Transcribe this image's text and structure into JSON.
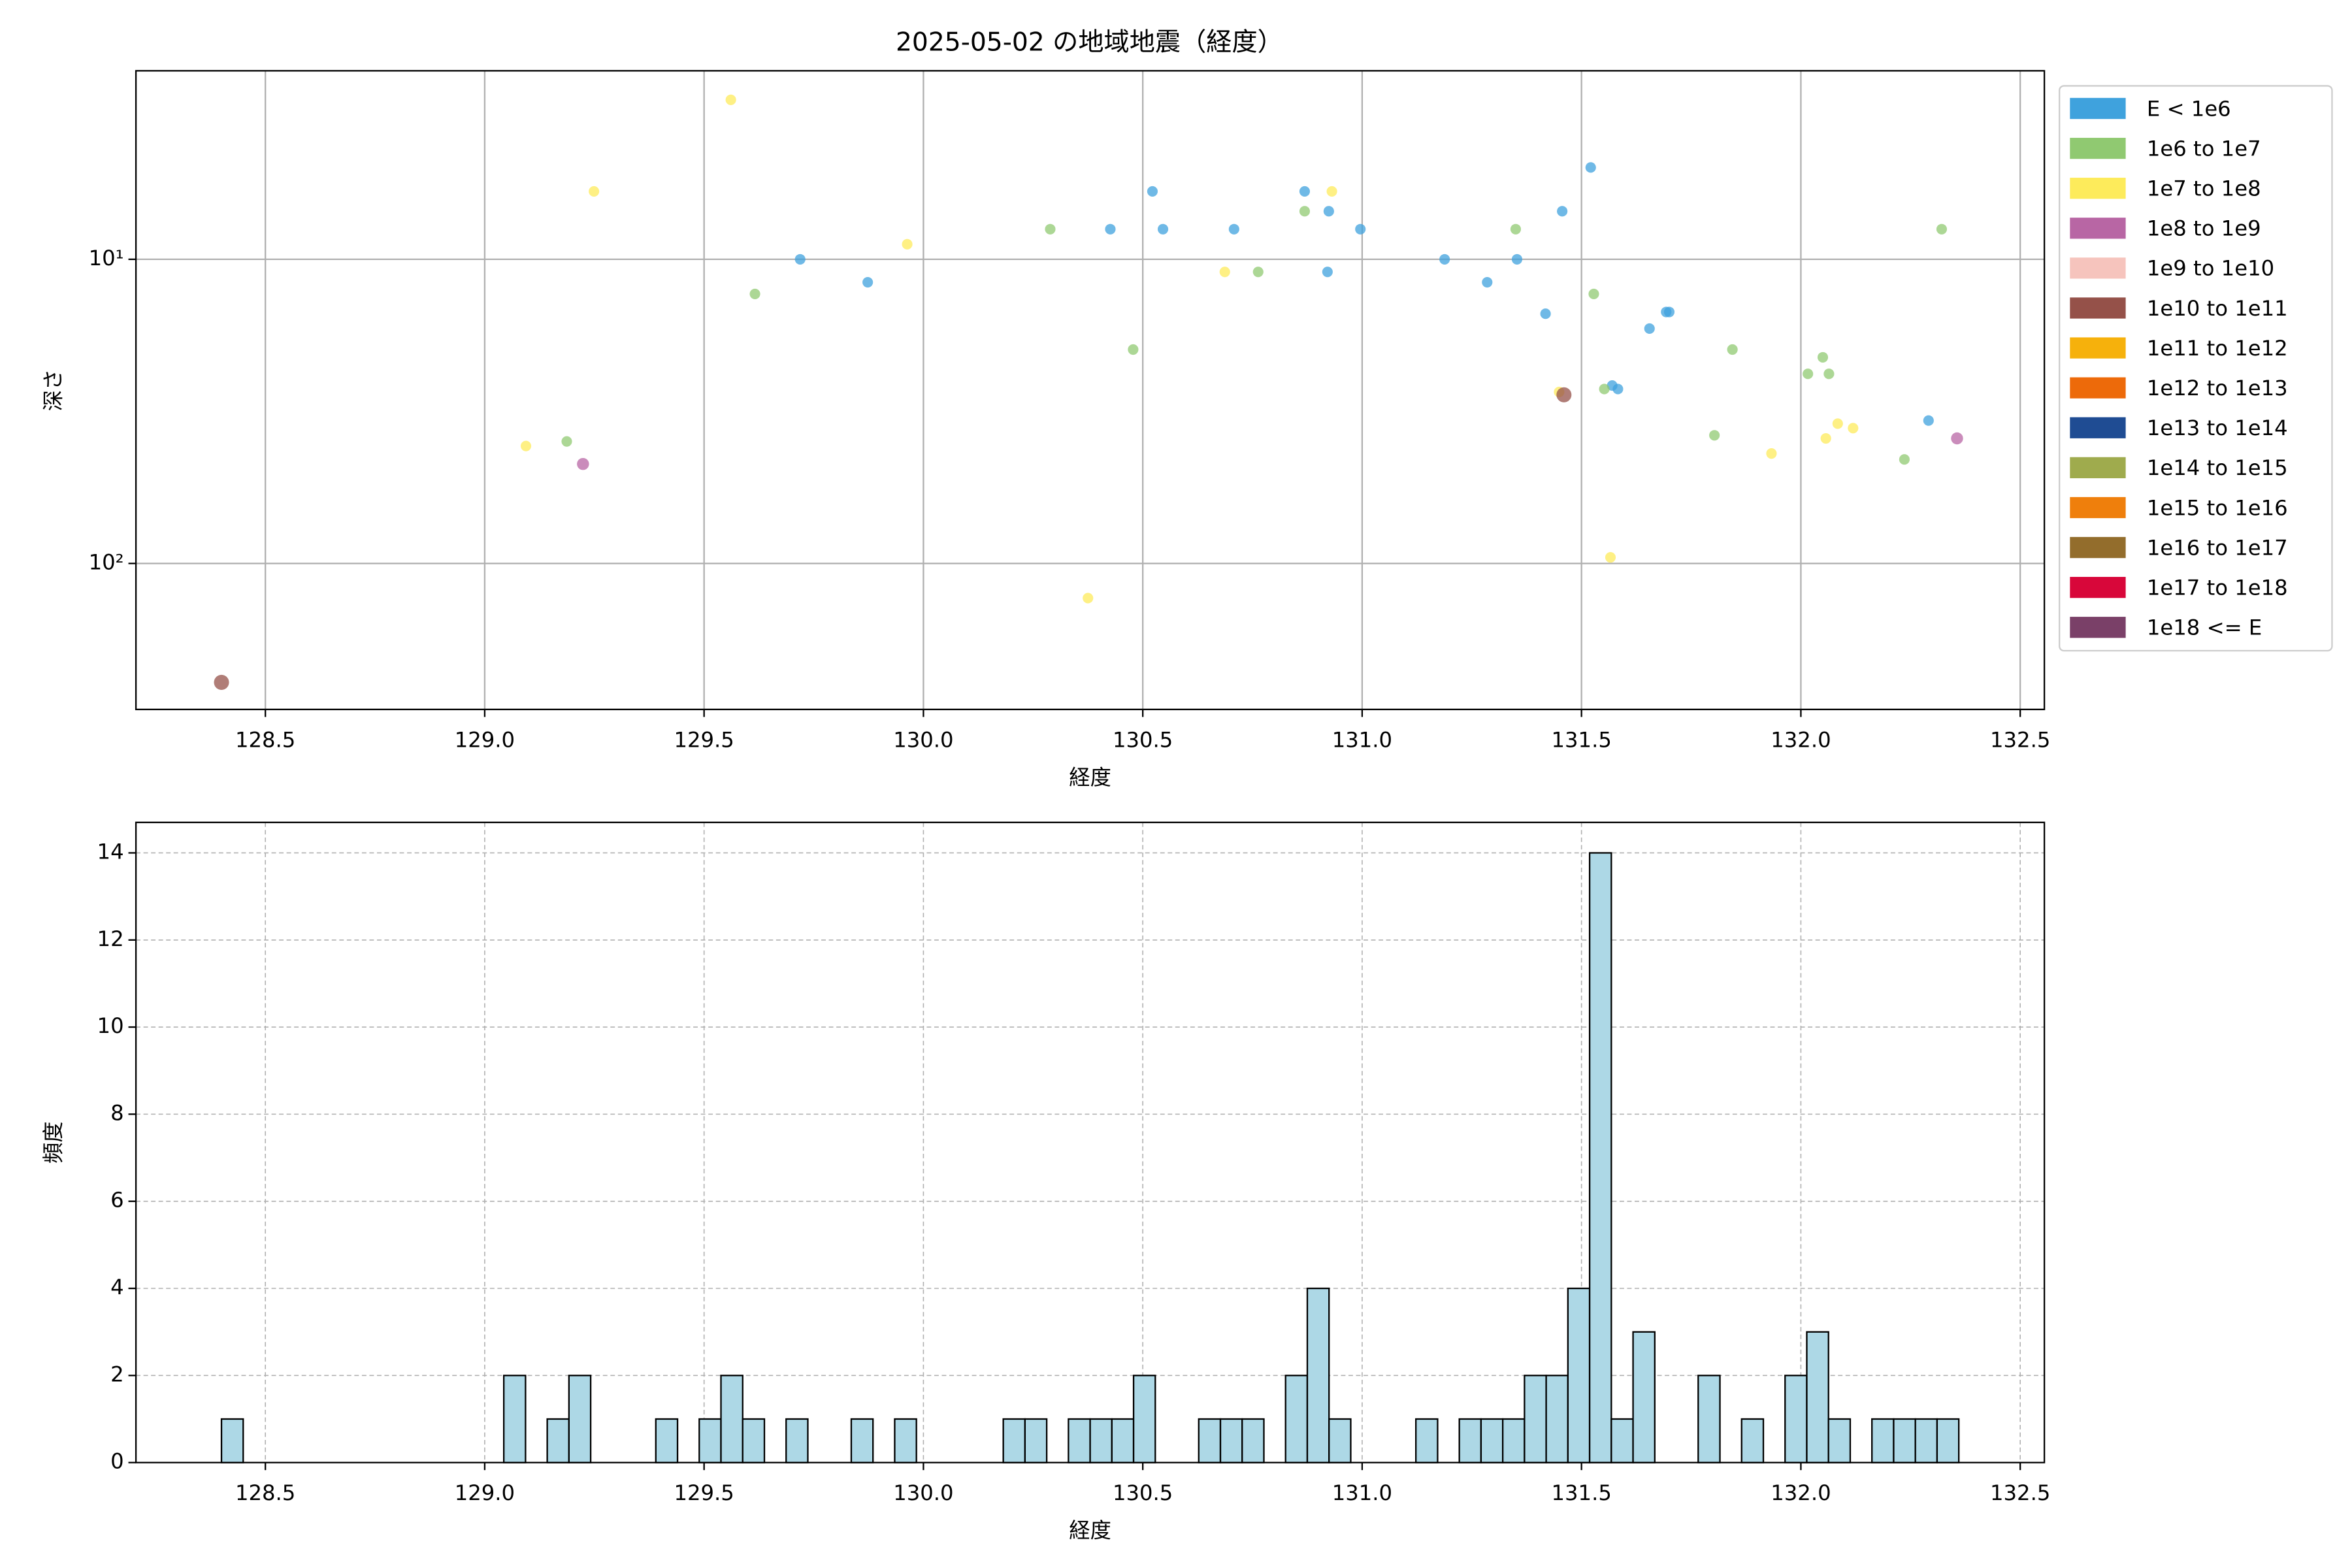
{
  "chart_data": [
    {
      "type": "scatter",
      "title": "2025-05-02 の地域地震（経度）",
      "x_label": "経度",
      "y_label": "深さ",
      "xlim": [
        128.205,
        132.555
      ],
      "ylim": [
        2.4,
        302
      ],
      "y_log": true,
      "y_inverted": true,
      "grid": true,
      "legend": "outside-right",
      "xticks": [
        128.5,
        129,
        129.5,
        130,
        130.5,
        131,
        131.5,
        132,
        132.5
      ],
      "xtick_labels": [
        "128.5",
        "129.0",
        "129.5",
        "130.0",
        "130.5",
        "131.0",
        "131.5",
        "132.0",
        "132.5"
      ],
      "yticks": [
        {
          "value": 10,
          "label": "10¹"
        },
        {
          "value": 100,
          "label": "10²"
        }
      ],
      "series": [
        {
          "name": "E < 1e6",
          "color": "#3fa2dd",
          "size": 3.5,
          "x": [
            129.719,
            129.873,
            130.426,
            130.522,
            130.546,
            130.708,
            130.869,
            130.921,
            130.924,
            130.996,
            131.188,
            131.285,
            131.353,
            131.418,
            131.456,
            131.521,
            131.57,
            131.583,
            131.655,
            131.693,
            131.7,
            132.291
          ],
          "values": [
            10,
            11.9,
            7.96,
            5.98,
            7.96,
            7.96,
            5.98,
            11,
            6.95,
            7.96,
            10,
            11.9,
            10,
            15.1,
            6.95,
            4.99,
            26,
            26.7,
            16.9,
            14.9,
            14.9,
            33.9
          ]
        },
        {
          "name": "1e6 to 1e7",
          "color": "#90c971",
          "size": 3.5,
          "x": [
            129.187,
            129.616,
            130.289,
            130.478,
            130.763,
            130.869,
            131.35,
            131.528,
            131.552,
            131.844,
            131.803,
            132.016,
            132.05,
            132.064,
            132.236,
            132.321
          ],
          "values": [
            39.7,
            13,
            7.96,
            19.8,
            11,
            6.95,
            7.96,
            13,
            26.7,
            19.8,
            37.9,
            23.8,
            21,
            23.8,
            45.5,
            7.96
          ]
        },
        {
          "name": "1e7 to 1e8",
          "color": "#fdeb5b",
          "size": 3.5,
          "x": [
            129.094,
            129.249,
            129.561,
            129.963,
            130.375,
            130.687,
            130.931,
            131.449,
            131.566,
            131.933,
            132.057,
            132.084,
            132.119
          ],
          "values": [
            41.1,
            5.98,
            2.99,
            8.92,
            130,
            11,
            5.98,
            27.3,
            95.5,
            43.5,
            38.8,
            34.7,
            35.9
          ]
        },
        {
          "name": "1e8 to 1e9",
          "color": "#b866a4",
          "size": 4,
          "x": [
            129.224,
            132.356
          ],
          "values": [
            47.1,
            38.8
          ]
        },
        {
          "name": "1e9 to 1e10",
          "color": "#f6c4bd",
          "size": 4.5,
          "x": [],
          "values": []
        },
        {
          "name": "1e10 to 1e11",
          "color": "#955149",
          "size": 5,
          "x": [
            128.4,
            131.46
          ],
          "values": [
            246,
            27.9
          ]
        },
        {
          "name": "1e11 to 1e12",
          "color": "#f6b10c",
          "size": 5.5,
          "x": [],
          "values": []
        },
        {
          "name": "1e12 to 1e13",
          "color": "#ed6a0a",
          "size": 6,
          "x": [],
          "values": []
        },
        {
          "name": "1e13 to 1e14",
          "color": "#1f4c93",
          "size": 6.5,
          "x": [],
          "values": []
        },
        {
          "name": "1e14 to 1e15",
          "color": "#9fab4d",
          "size": 7,
          "x": [],
          "values": []
        },
        {
          "name": "1e15 to 1e16",
          "color": "#ef7f0c",
          "size": 7.5,
          "x": [],
          "values": []
        },
        {
          "name": "1e16 to 1e17",
          "color": "#936d2c",
          "size": 8,
          "x": [],
          "values": []
        },
        {
          "name": "1e17 to 1e18",
          "color": "#d8073a",
          "size": 8.5,
          "x": [],
          "values": []
        },
        {
          "name": "1e18 <= E",
          "color": "#7a4068",
          "size": 9,
          "x": [],
          "values": []
        }
      ]
    },
    {
      "type": "histogram",
      "x_label": "経度",
      "y_label": "頻度",
      "color": "#add8e6",
      "edge_color": "#000000",
      "xlim": [
        128.205,
        132.555
      ],
      "ylim": [
        0,
        14.7
      ],
      "grid": true,
      "grid_style": "dashed",
      "xticks": [
        128.5,
        129,
        129.5,
        130,
        130.5,
        131,
        131.5,
        132,
        132.5
      ],
      "xtick_labels": [
        "128.5",
        "129.0",
        "129.5",
        "130.0",
        "130.5",
        "131.0",
        "131.5",
        "132.0",
        "132.5"
      ],
      "yticks": [
        0,
        2,
        4,
        6,
        8,
        10,
        12,
        14
      ],
      "bins": [
        128.4,
        128.4495,
        128.499,
        128.5485,
        128.598,
        128.6475,
        128.697,
        128.7465,
        128.796,
        128.8455,
        128.895,
        128.9445,
        128.994,
        129.0435,
        129.093,
        129.1425,
        129.192,
        129.2415,
        129.291,
        129.3405,
        129.39,
        129.4395,
        129.489,
        129.5385,
        129.588,
        129.6375,
        129.687,
        129.7365,
        129.786,
        129.8355,
        129.885,
        129.9345,
        129.984,
        130.0335,
        130.083,
        130.1325,
        130.182,
        130.2315,
        130.281,
        130.3305,
        130.38,
        130.4295,
        130.479,
        130.5285,
        130.578,
        130.6275,
        130.677,
        130.7265,
        130.776,
        130.8255,
        130.875,
        130.9245,
        130.974,
        131.0235,
        131.073,
        131.1225,
        131.172,
        131.2215,
        131.271,
        131.3205,
        131.37,
        131.4195,
        131.469,
        131.5185,
        131.568,
        131.6175,
        131.667,
        131.7165,
        131.766,
        131.8155,
        131.865,
        131.9145,
        131.964,
        132.0135,
        132.063,
        132.1125,
        132.162,
        132.2115,
        132.261,
        132.3105,
        132.36
      ],
      "values": [
        1,
        0,
        0,
        0,
        0,
        0,
        0,
        0,
        0,
        0,
        0,
        0,
        0,
        2,
        0,
        1,
        2,
        0,
        0,
        0,
        1,
        0,
        1,
        2,
        1,
        0,
        1,
        0,
        0,
        1,
        0,
        1,
        0,
        0,
        0,
        0,
        1,
        1,
        0,
        1,
        1,
        1,
        2,
        0,
        0,
        1,
        1,
        1,
        0,
        2,
        4,
        1,
        0,
        0,
        0,
        1,
        0,
        1,
        1,
        1,
        2,
        2,
        4,
        14,
        1,
        3,
        0,
        0,
        2,
        0,
        1,
        0,
        2,
        3,
        1,
        0,
        1,
        1,
        1,
        1
      ]
    }
  ]
}
